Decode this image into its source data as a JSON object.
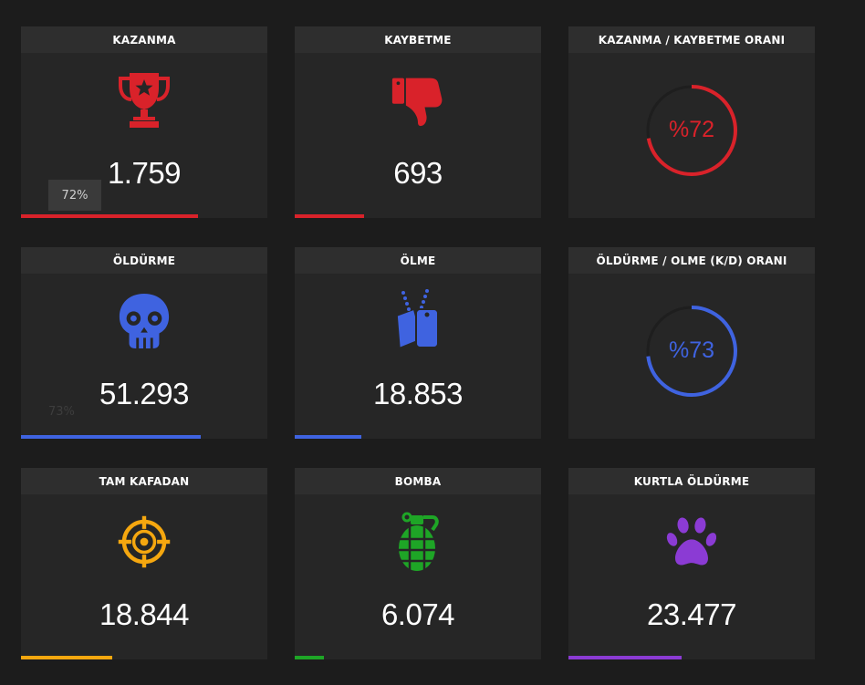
{
  "cards": [
    {
      "title": "KAZANMA",
      "value": "1.759",
      "icon": "trophy-icon",
      "color": "#d9222a",
      "bar": 0.72,
      "tooltip": "72%"
    },
    {
      "title": "KAYBETME",
      "value": "693",
      "icon": "thumbs-down-icon",
      "color": "#d9222a",
      "bar": 0.28
    },
    {
      "title": "KAZANMA / KAYBETME ORANI",
      "ratio": "%72",
      "ratio_value": 0.72,
      "color": "#d9222a"
    },
    {
      "title": "ÖLDÜRME",
      "value": "51.293",
      "icon": "skull-icon",
      "color": "#3f63e0",
      "bar": 0.73,
      "ghost_tooltip": "73%"
    },
    {
      "title": "ÖLME",
      "value": "18.853",
      "icon": "dog-tags-icon",
      "color": "#3f63e0",
      "bar": 0.27
    },
    {
      "title": "ÖLDÜRME / OLME (K/D) ORANI",
      "ratio": "%73",
      "ratio_value": 0.73,
      "color": "#3f63e0"
    },
    {
      "title": "TAM KAFADAN",
      "value": "18.844",
      "icon": "crosshair-icon",
      "color": "#f5a70f",
      "bar": 0.37
    },
    {
      "title": "BOMBA",
      "value": "6.074",
      "icon": "grenade-icon",
      "color": "#1ea526",
      "bar": 0.12
    },
    {
      "title": "KURTLA ÖLDÜRME",
      "value": "23.477",
      "icon": "paw-icon",
      "color": "#8b3bd4",
      "bar": 0.46
    }
  ]
}
